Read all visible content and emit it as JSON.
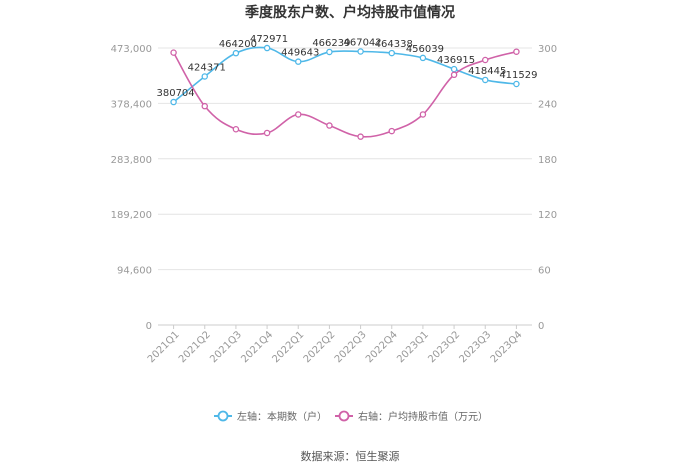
{
  "chart_data": {
    "type": "line",
    "title": "季度股东户数、户均持股市值情况",
    "categories": [
      "2021Q1",
      "2021Q2",
      "2021Q3",
      "2021Q4",
      "2022Q1",
      "2022Q2",
      "2022Q3",
      "2022Q4",
      "2023Q1",
      "2023Q2",
      "2023Q3",
      "2023Q4"
    ],
    "y_left": {
      "ticks": [
        "0",
        "94,600",
        "189,200",
        "283,800",
        "378,400",
        "473,000"
      ],
      "ylim": [
        0,
        473000
      ]
    },
    "y_right": {
      "ticks": [
        "0",
        "60",
        "120",
        "180",
        "240",
        "300"
      ],
      "ylim": [
        0,
        300
      ]
    },
    "series": [
      {
        "name": "左轴：本期数（户）",
        "axis": "left",
        "color": "#4fb8e8",
        "values": [
          380704,
          424371,
          464200,
          472971,
          449643,
          466239,
          467042,
          464338,
          456039,
          436915,
          418445,
          411529
        ],
        "labels": [
          "380704",
          "424371",
          "464200",
          "472971",
          "449643",
          "466239",
          "467042",
          "464338",
          "456039",
          "436915",
          "418445",
          "411529"
        ]
      },
      {
        "name": "右轴：户均持股市值（万元）",
        "axis": "right",
        "color": "#d062a8",
        "values": [
          295,
          237,
          212,
          208,
          228,
          216,
          204,
          210,
          228,
          271,
          287,
          296
        ]
      }
    ],
    "grid": true,
    "legend": "bottom",
    "source": "数据来源：恒生聚源"
  }
}
